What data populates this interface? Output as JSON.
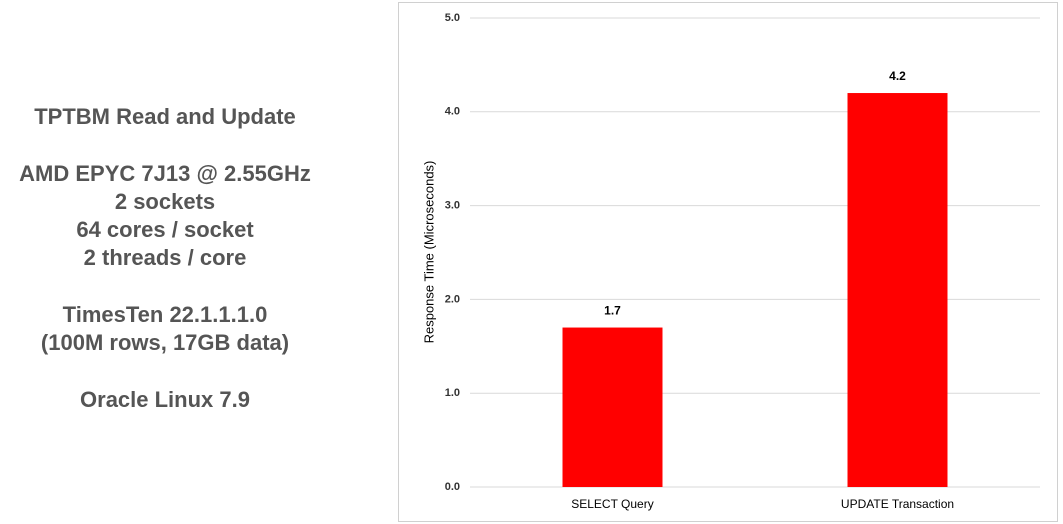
{
  "side_text": [
    [
      "TPTBM Read and Update"
    ],
    [
      "AMD EPYC 7J13 @ 2.55GHz",
      "2 sockets",
      "64 cores / socket",
      "2 threads / core"
    ],
    [
      "TimesTen 22.1.1.1.0",
      "(100M rows, 17GB data)"
    ],
    [
      "Oracle Linux 7.9"
    ]
  ],
  "chart_data": {
    "type": "bar",
    "y_label": "Response Time (Microseconds)",
    "categories": [
      "SELECT Query",
      "UPDATE Transaction"
    ],
    "values": [
      1.7,
      4.2
    ],
    "color": "#ff0000",
    "ylim": [
      0,
      5
    ],
    "yticks": [
      {
        "value": 0,
        "label": "0.0"
      },
      {
        "value": 1,
        "label": "1.0"
      },
      {
        "value": 2,
        "label": "2.0"
      },
      {
        "value": 3,
        "label": "3.0"
      },
      {
        "value": 4,
        "label": "4.0"
      },
      {
        "value": 5,
        "label": "5.0"
      }
    ],
    "grid": true
  }
}
